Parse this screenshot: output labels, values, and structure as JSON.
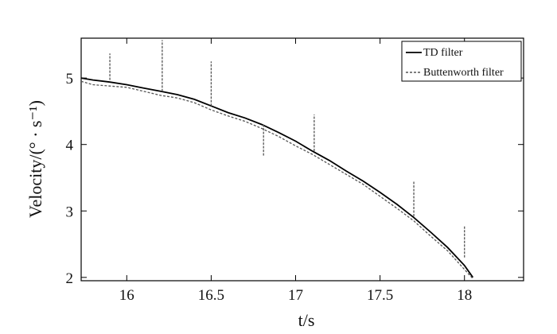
{
  "chart_data": {
    "type": "line",
    "xlabel": "t/s",
    "ylabel": "Velocity/(° · s⁻¹)",
    "xlim": [
      15.73,
      18.35
    ],
    "ylim": [
      1.95,
      5.6
    ],
    "xticks": [
      16,
      16.5,
      17,
      17.5,
      18
    ],
    "yticks": [
      2,
      3,
      4,
      5
    ],
    "xtick_labels": [
      "16",
      "16.5",
      "17",
      "17.5",
      "18"
    ],
    "ytick_labels": [
      "2",
      "3",
      "4",
      "5"
    ],
    "grid": false,
    "legend_position": "top-right",
    "series": [
      {
        "name": "TD filter",
        "color": "#000000",
        "line_style": "solid",
        "x": [
          15.73,
          15.8,
          15.9,
          16.0,
          16.1,
          16.2,
          16.3,
          16.4,
          16.5,
          16.6,
          16.7,
          16.8,
          16.9,
          17.0,
          17.1,
          17.2,
          17.3,
          17.4,
          17.5,
          17.6,
          17.7,
          17.8,
          17.9,
          18.0,
          18.05
        ],
        "y": [
          5.0,
          4.97,
          4.94,
          4.9,
          4.85,
          4.8,
          4.75,
          4.68,
          4.58,
          4.48,
          4.4,
          4.3,
          4.18,
          4.05,
          3.9,
          3.76,
          3.6,
          3.45,
          3.28,
          3.1,
          2.9,
          2.68,
          2.45,
          2.18,
          2.0
        ]
      },
      {
        "name": "Buttenworth filter",
        "color": "#555555",
        "line_style": "dashed",
        "x": [
          15.73,
          15.8,
          15.9,
          16.0,
          16.1,
          16.2,
          16.3,
          16.4,
          16.5,
          16.6,
          16.7,
          16.8,
          16.9,
          17.0,
          17.1,
          17.2,
          17.3,
          17.4,
          17.5,
          17.6,
          17.7,
          17.8,
          17.9,
          18.0,
          18.05
        ],
        "y": [
          4.95,
          4.9,
          4.88,
          4.86,
          4.8,
          4.74,
          4.7,
          4.63,
          4.52,
          4.43,
          4.35,
          4.24,
          4.12,
          3.98,
          3.85,
          3.7,
          3.55,
          3.4,
          3.22,
          3.04,
          2.85,
          2.62,
          2.4,
          2.12,
          1.98
        ],
        "spikes": [
          {
            "x": 15.9,
            "from": 4.97,
            "to": 5.37
          },
          {
            "x": 16.21,
            "from": 4.8,
            "to": 5.57
          },
          {
            "x": 16.5,
            "from": 4.58,
            "to": 5.25
          },
          {
            "x": 16.81,
            "from": 4.3,
            "to": 3.82
          },
          {
            "x": 17.11,
            "from": 3.9,
            "to": 4.45
          },
          {
            "x": 17.7,
            "from": 2.92,
            "to": 3.45
          },
          {
            "x": 18.0,
            "from": 2.3,
            "to": 2.78
          }
        ]
      }
    ]
  }
}
